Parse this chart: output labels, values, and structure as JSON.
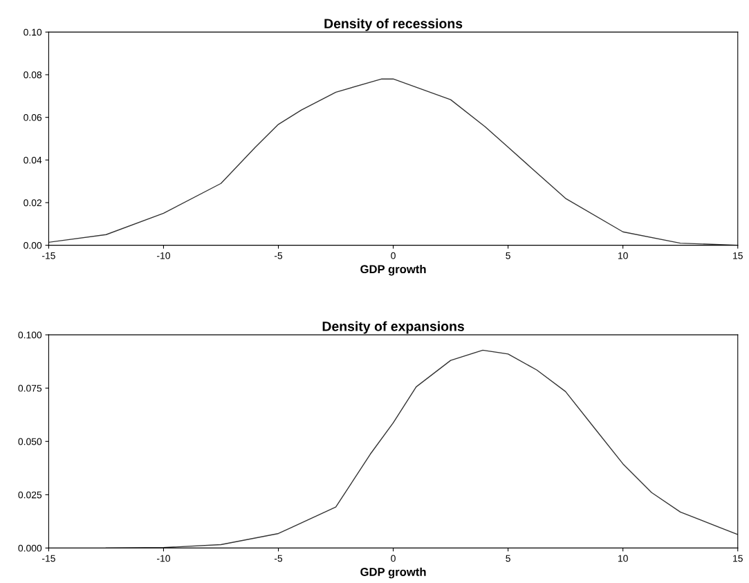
{
  "chart_data": [
    {
      "type": "line",
      "title": "Density of recessions",
      "xlabel": "GDP growth",
      "xlim": [
        -15,
        15
      ],
      "xticks": [
        -15,
        -10,
        -5,
        0,
        5,
        10,
        15
      ],
      "ylim": [
        0,
        0.1
      ],
      "yticks": [
        {
          "value": 0,
          "label": "0.00"
        },
        {
          "value": 0.02,
          "label": "0.02"
        },
        {
          "value": 0.04,
          "label": "0.04"
        },
        {
          "value": 0.06,
          "label": "0.06"
        },
        {
          "value": 0.08,
          "label": "0.08"
        },
        {
          "value": 0.1,
          "label": "0.10"
        }
      ],
      "grid": false,
      "legend": false,
      "series": [
        {
          "color": "#333333",
          "x": [
            -15,
            -12.5,
            -10,
            -7.5,
            -6,
            -5,
            -4,
            -2.5,
            -0.5,
            0,
            2.5,
            4,
            5,
            6,
            7.5,
            10,
            12.5,
            15
          ],
          "values": [
            0.0014,
            0.005,
            0.015,
            0.029,
            0.046,
            0.0567,
            0.0634,
            0.0718,
            0.078,
            0.078,
            0.0683,
            0.0556,
            0.046,
            0.0364,
            0.022,
            0.0063,
            0.001,
            0.0
          ]
        }
      ]
    },
    {
      "type": "line",
      "title": "Density of expansions",
      "xlabel": "GDP growth",
      "xlim": [
        -15,
        15
      ],
      "xticks": [
        -15,
        -10,
        -5,
        0,
        5,
        10,
        15
      ],
      "ylim": [
        0,
        0.1
      ],
      "yticks": [
        {
          "value": 0,
          "label": "0.000"
        },
        {
          "value": 0.025,
          "label": "0.025"
        },
        {
          "value": 0.05,
          "label": "0.050"
        },
        {
          "value": 0.075,
          "label": "0.075"
        },
        {
          "value": 0.1,
          "label": "0.100"
        }
      ],
      "grid": false,
      "legend": false,
      "series": [
        {
          "color": "#333333",
          "x": [
            -12.5,
            -10,
            -7.5,
            -5,
            -2.5,
            -1,
            0,
            1,
            2.5,
            3.9,
            5,
            6.25,
            7.5,
            8.75,
            10,
            11.25,
            12.5,
            15
          ],
          "values": [
            0.0,
            0.0002,
            0.0016,
            0.0068,
            0.0192,
            0.044,
            0.0587,
            0.0756,
            0.088,
            0.0928,
            0.091,
            0.0835,
            0.0734,
            0.0564,
            0.0395,
            0.026,
            0.0169,
            0.0063
          ]
        }
      ]
    }
  ]
}
